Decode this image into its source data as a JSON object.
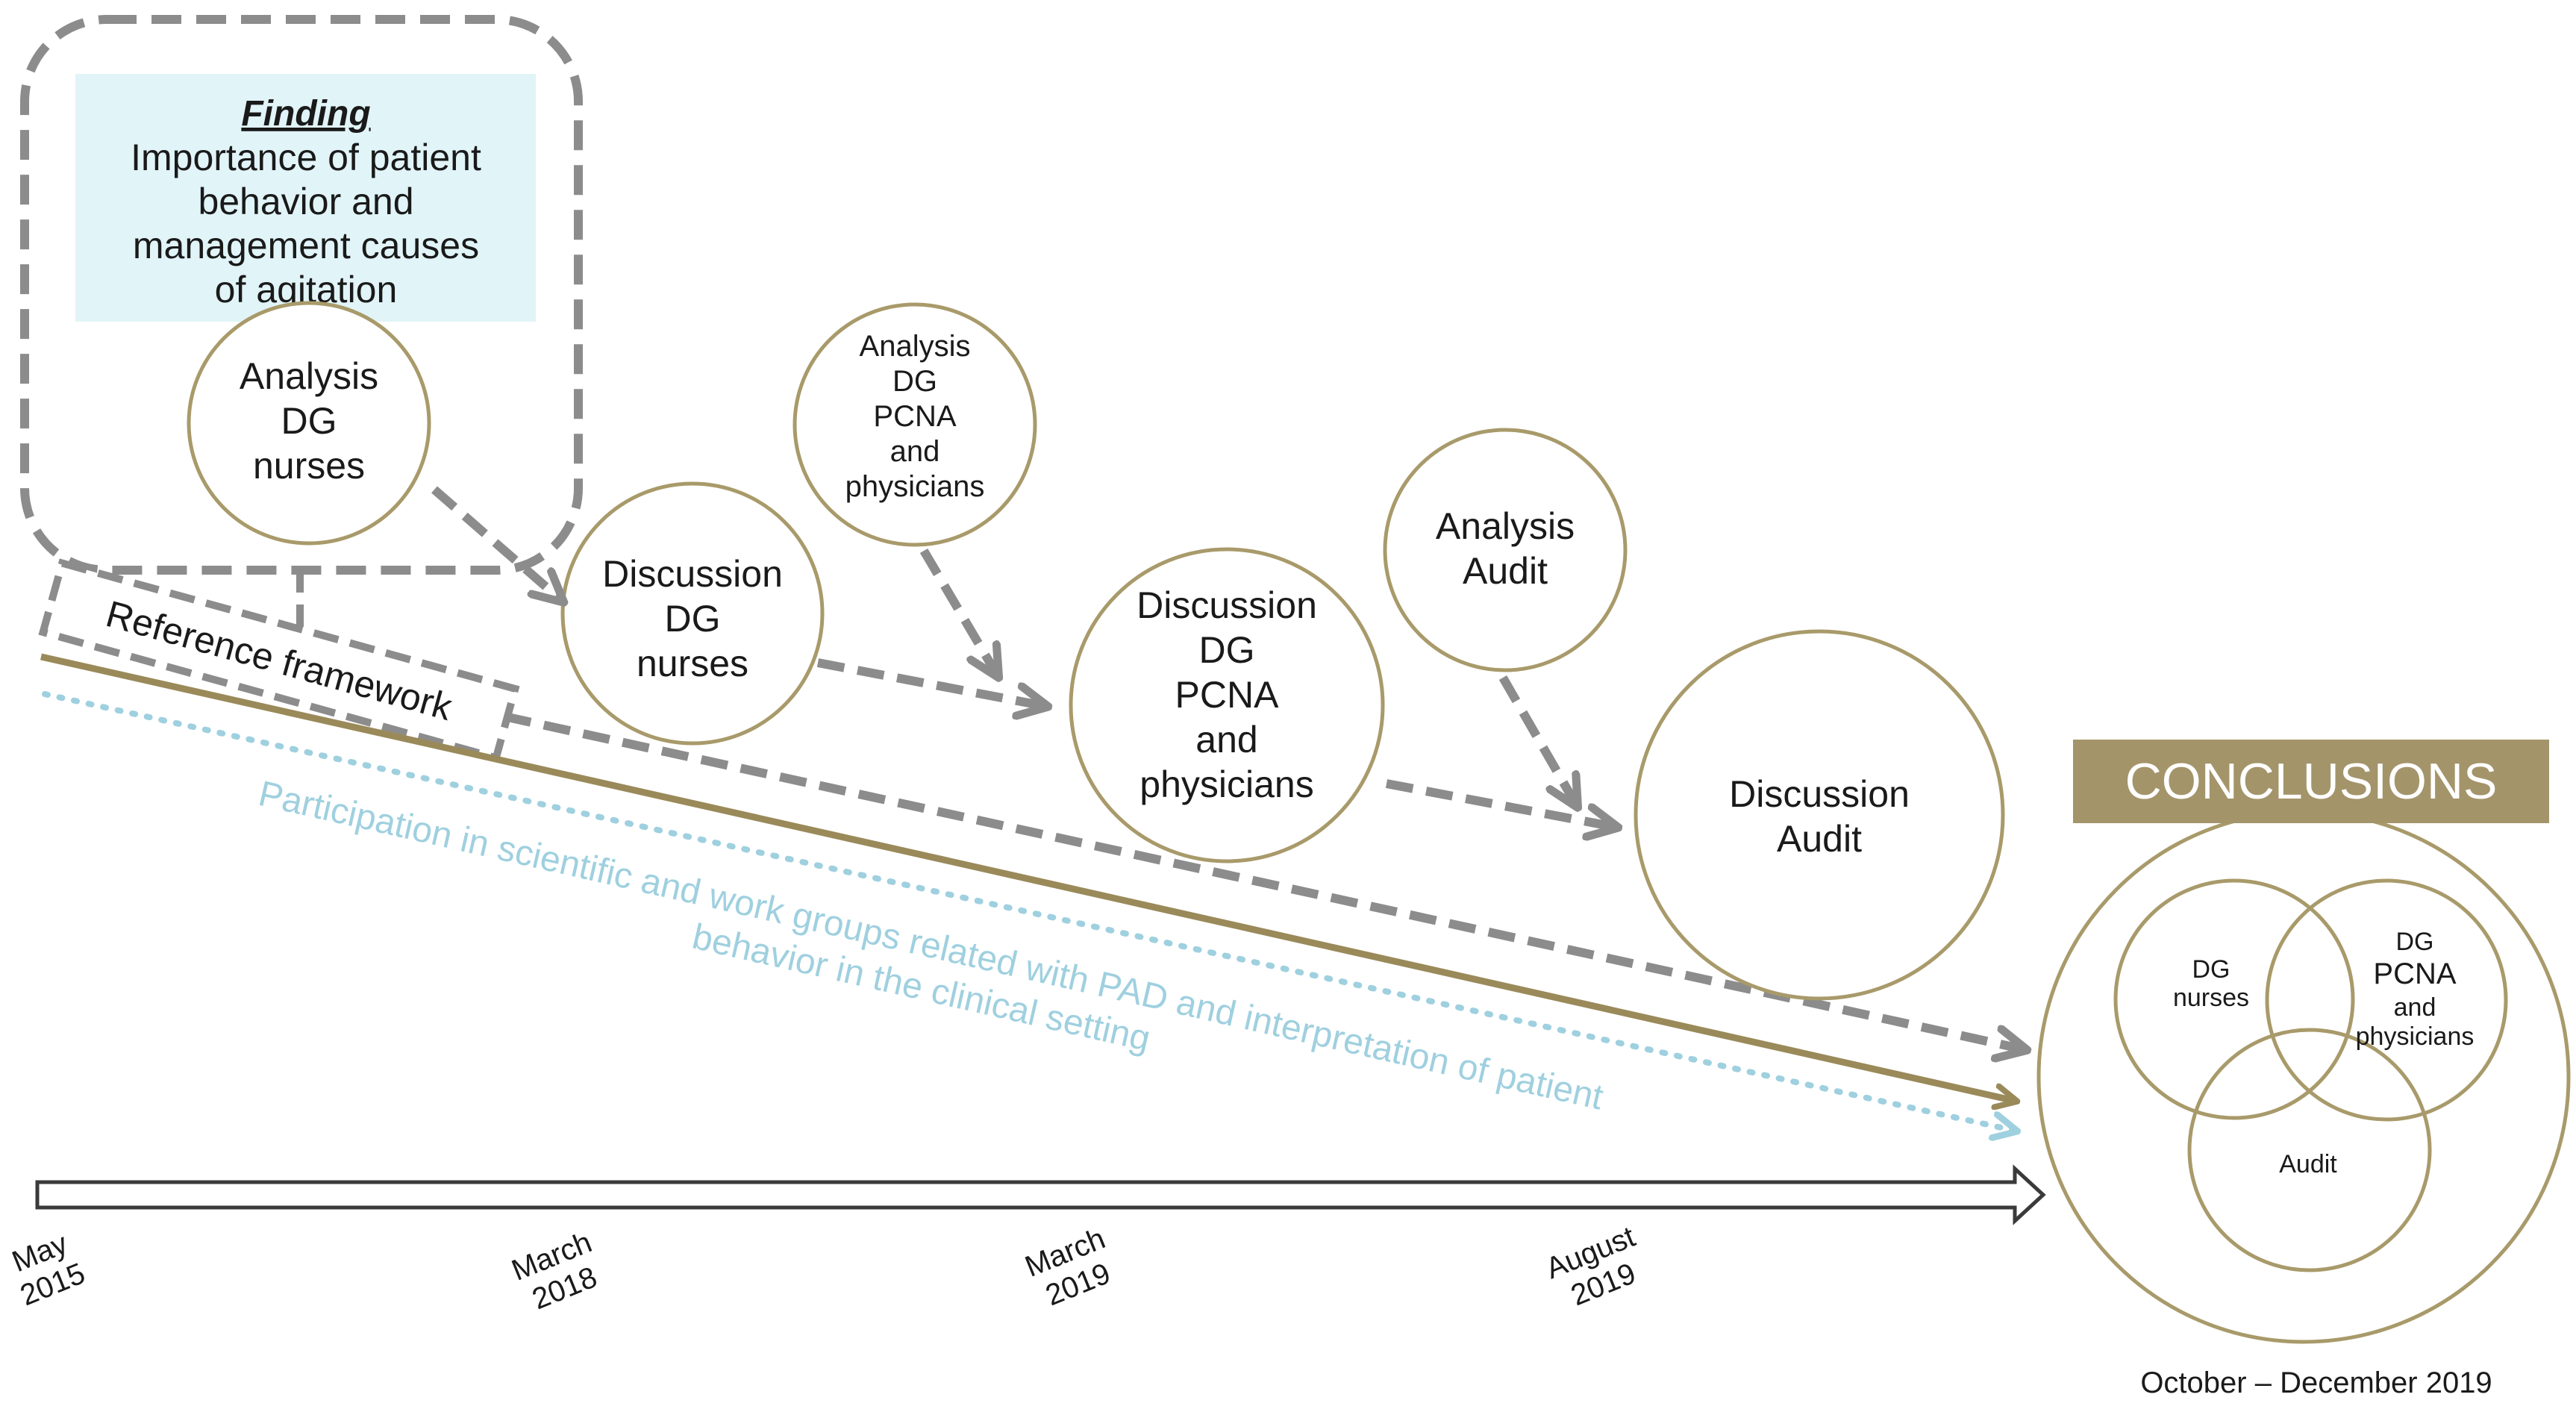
{
  "finding_box": {
    "title": "Finding",
    "lines": [
      "Importance of patient",
      "behavior and",
      "management causes",
      "of agitation"
    ]
  },
  "nodes": {
    "analysis_dg_nurses": [
      "Analysis",
      "DG",
      "nurses"
    ],
    "discussion_dg_nurses": [
      "Discussion",
      "DG",
      "nurses"
    ],
    "analysis_dg_pcna": [
      "Analysis",
      "DG",
      "PCNA",
      "and",
      "physicians"
    ],
    "discussion_dg_pcna": [
      "Discussion",
      "DG",
      "PCNA",
      "and",
      "physicians"
    ],
    "analysis_audit": [
      "Analysis",
      "Audit"
    ],
    "discussion_audit": [
      "Discussion",
      "Audit"
    ]
  },
  "reference_framework": "Reference framework",
  "participation": {
    "lines": [
      "Participation in scientific and work groups  related with PAD and interpretation of patient",
      "behavior in the clinical setting"
    ]
  },
  "timeline": [
    {
      "month": "May",
      "year": "2015"
    },
    {
      "month": "March",
      "year": "2018"
    },
    {
      "month": "March",
      "year": "2019"
    },
    {
      "month": "August",
      "year": "2019"
    }
  ],
  "conclusions": {
    "title": "CONCLUSIONS",
    "venn_nurses": [
      "DG",
      "nurses"
    ],
    "venn_pcna": [
      "DG",
      "PCNA",
      "and",
      "physicians"
    ],
    "venn_audit": "Audit",
    "date": "October – December 2019"
  },
  "colors": {
    "gold": "#a89a6a",
    "gold_dark": "#9a8a5a",
    "conclusions_fill": "#a4946a",
    "dashed_gray": "#8c8c8c",
    "light_blue": "#9fd0df",
    "finding_fill": "#e1f4f8"
  }
}
